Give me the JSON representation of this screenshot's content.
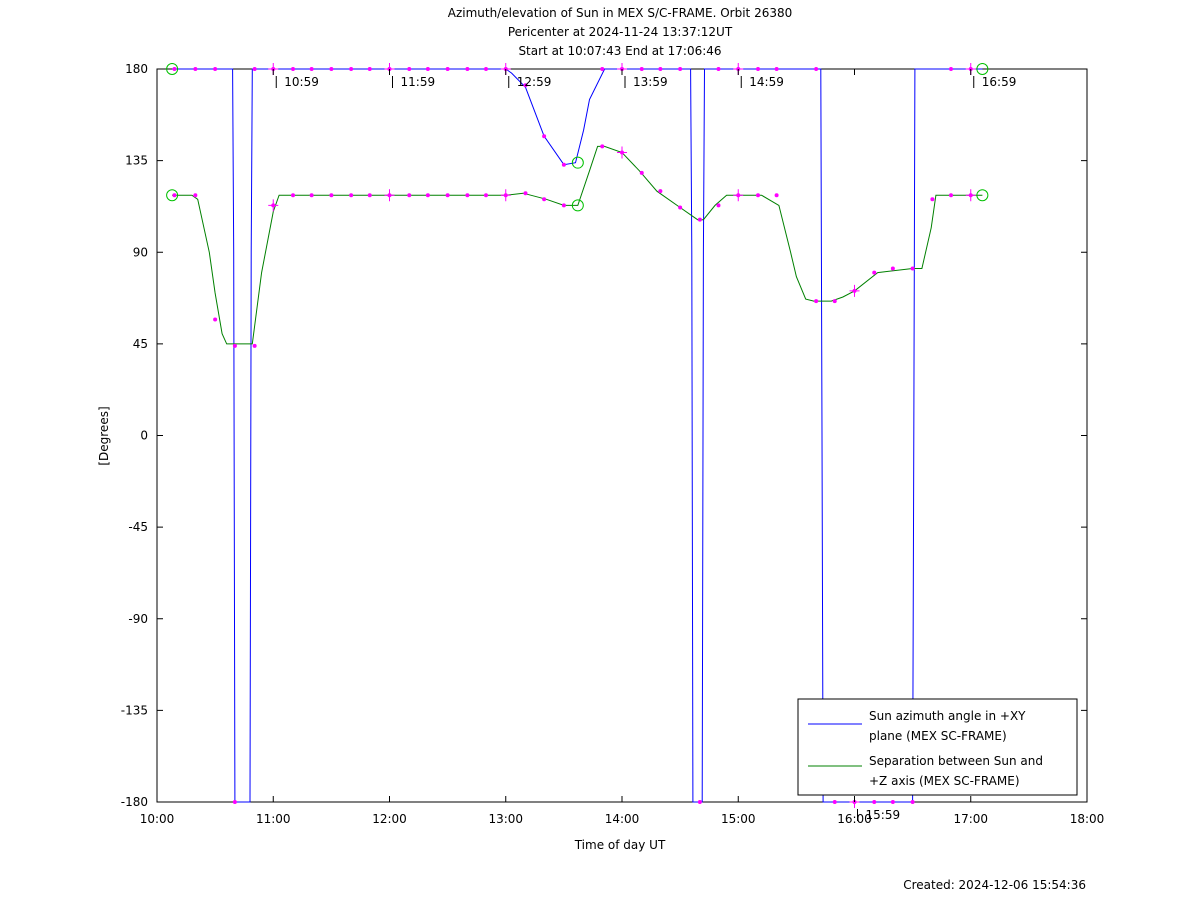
{
  "chart_data": {
    "type": "line",
    "title": "Azimuth/elevation of Sun in MEX S/C-FRAME.  Orbit 26380",
    "subtitle_1": "Pericenter at 2024-11-24 13:37:12UT",
    "subtitle_2": "Start at 10:07:43 End at 17:06:46",
    "xlabel": "Time of day UT",
    "ylabel": "[Degrees]",
    "footer": "Created: 2024-12-06 15:54:36",
    "xlim": [
      10.0,
      18.0
    ],
    "ylim": [
      -180,
      180
    ],
    "x_ticks": [
      {
        "v": 10,
        "label": "10:00"
      },
      {
        "v": 11,
        "label": "11:00"
      },
      {
        "v": 12,
        "label": "12:00"
      },
      {
        "v": 13,
        "label": "13:00"
      },
      {
        "v": 14,
        "label": "14:00"
      },
      {
        "v": 15,
        "label": "15:00"
      },
      {
        "v": 16,
        "label": "16:00"
      },
      {
        "v": 17,
        "label": "17:00"
      },
      {
        "v": 18,
        "label": "18:00"
      }
    ],
    "y_ticks": [
      {
        "v": 180,
        "label": "180"
      },
      {
        "v": 135,
        "label": "135"
      },
      {
        "v": 90,
        "label": "90"
      },
      {
        "v": 45,
        "label": "45"
      },
      {
        "v": 0,
        "label": "0"
      },
      {
        "v": -45,
        "label": "-45"
      },
      {
        "v": -90,
        "label": "-90"
      },
      {
        "v": -135,
        "label": "-135"
      },
      {
        "v": -180,
        "label": "-180"
      }
    ],
    "legend_position": "bottom-right",
    "series": [
      {
        "name_line1": "Sun azimuth angle in +XY",
        "name_line2": "plane (MEX SC-FRAME)",
        "color": "#0000ff",
        "x": [
          10.13,
          10.55,
          10.65,
          10.66,
          10.67,
          10.8,
          10.81,
          10.82,
          10.9,
          11.5,
          12.5,
          13.0,
          13.05,
          13.17,
          13.33,
          13.5,
          13.6,
          13.67,
          13.72,
          13.85,
          14.5,
          14.59,
          14.6,
          14.61,
          14.69,
          14.7,
          14.71,
          15.0,
          15.5,
          15.71,
          15.72,
          15.73,
          15.75,
          16.5,
          16.51,
          16.52,
          16.53,
          17.1
        ],
        "y": [
          180,
          180,
          180,
          90,
          -180,
          -180,
          90,
          180,
          180,
          180,
          180,
          180,
          178,
          171,
          147,
          133,
          134,
          150,
          165,
          180,
          180,
          180,
          90,
          -180,
          -180,
          90,
          180,
          180,
          180,
          180,
          0,
          -180,
          -180,
          -180,
          0,
          180,
          180,
          180
        ]
      },
      {
        "name_line1": "Separation between Sun and",
        "name_line2": "+Z axis (MEX SC-FRAME)",
        "color": "#008000",
        "x": [
          10.13,
          10.3,
          10.35,
          10.45,
          10.5,
          10.56,
          10.6,
          10.65,
          10.82,
          10.9,
          11.0,
          11.05,
          11.5,
          12.0,
          12.5,
          13.0,
          13.15,
          13.35,
          13.5,
          13.62,
          13.72,
          13.79,
          13.85,
          14.0,
          14.15,
          14.3,
          14.5,
          14.65,
          14.7,
          14.8,
          14.9,
          15.0,
          15.2,
          15.35,
          15.45,
          15.5,
          15.58,
          15.65,
          15.8,
          15.9,
          16.0,
          16.2,
          16.5,
          16.58,
          16.66,
          16.7,
          17.1
        ],
        "y": [
          118,
          118,
          116,
          90,
          70,
          50,
          45,
          45,
          45,
          80,
          110,
          118,
          118,
          118,
          118,
          118,
          119,
          116,
          113,
          113,
          130,
          142,
          142,
          139,
          130,
          120,
          112,
          106,
          106,
          113,
          118,
          118,
          118,
          113,
          90,
          78,
          67,
          66,
          66,
          68,
          71,
          80,
          82,
          82,
          102,
          118,
          118
        ]
      }
    ],
    "sample_markers": {
      "color": "#ff00ff",
      "points": [
        [
          10.15,
          118
        ],
        [
          10.33,
          118
        ],
        [
          10.5,
          57
        ],
        [
          10.67,
          44
        ],
        [
          10.84,
          44
        ],
        [
          11.0,
          113
        ],
        [
          11.17,
          118
        ],
        [
          11.33,
          118
        ],
        [
          11.5,
          118
        ],
        [
          11.67,
          118
        ],
        [
          11.83,
          118
        ],
        [
          12.0,
          118
        ],
        [
          12.17,
          118
        ],
        [
          12.33,
          118
        ],
        [
          12.5,
          118
        ],
        [
          12.67,
          118
        ],
        [
          12.83,
          118
        ],
        [
          13.0,
          118
        ],
        [
          13.17,
          119
        ],
        [
          13.33,
          116
        ],
        [
          13.5,
          113
        ],
        [
          13.83,
          142
        ],
        [
          14.0,
          139
        ],
        [
          14.17,
          129
        ],
        [
          14.33,
          120
        ],
        [
          14.5,
          112
        ],
        [
          14.67,
          106
        ],
        [
          14.83,
          113
        ],
        [
          15.0,
          118
        ],
        [
          15.17,
          118
        ],
        [
          15.33,
          118
        ],
        [
          15.67,
          66
        ],
        [
          15.83,
          66
        ],
        [
          16.0,
          71
        ],
        [
          16.17,
          80
        ],
        [
          16.33,
          82
        ],
        [
          16.5,
          82
        ],
        [
          16.67,
          116
        ],
        [
          16.83,
          118
        ],
        [
          17.0,
          118
        ],
        [
          10.15,
          180
        ],
        [
          10.33,
          180
        ],
        [
          10.5,
          180
        ],
        [
          10.67,
          -180
        ],
        [
          10.84,
          180
        ],
        [
          11.0,
          180
        ],
        [
          11.17,
          180
        ],
        [
          11.33,
          180
        ],
        [
          11.5,
          180
        ],
        [
          11.67,
          180
        ],
        [
          11.83,
          180
        ],
        [
          12.0,
          180
        ],
        [
          12.17,
          180
        ],
        [
          12.33,
          180
        ],
        [
          12.5,
          180
        ],
        [
          12.67,
          180
        ],
        [
          12.83,
          180
        ],
        [
          13.0,
          180
        ],
        [
          13.17,
          172
        ],
        [
          13.33,
          147
        ],
        [
          13.5,
          133
        ],
        [
          13.83,
          180
        ],
        [
          14.0,
          180
        ],
        [
          14.17,
          180
        ],
        [
          14.33,
          180
        ],
        [
          14.5,
          180
        ],
        [
          14.67,
          -180
        ],
        [
          14.83,
          180
        ],
        [
          15.0,
          180
        ],
        [
          15.17,
          180
        ],
        [
          15.33,
          180
        ],
        [
          15.67,
          180
        ],
        [
          15.83,
          -180
        ],
        [
          16.0,
          -180
        ],
        [
          16.17,
          -180
        ],
        [
          16.33,
          -180
        ],
        [
          16.5,
          -180
        ],
        [
          16.83,
          180
        ],
        [
          17.0,
          180
        ]
      ],
      "hour_crosses": [
        [
          11.0,
          113
        ],
        [
          14.0,
          139
        ],
        [
          16.0,
          71
        ],
        [
          11.0,
          180
        ],
        [
          12.0,
          180
        ],
        [
          13.0,
          180
        ],
        [
          14.0,
          180
        ],
        [
          15.0,
          180
        ],
        [
          17.0,
          180
        ],
        [
          16.0,
          -180
        ],
        [
          12.0,
          118
        ],
        [
          13.0,
          118
        ],
        [
          15.0,
          118
        ],
        [
          17.0,
          118
        ]
      ],
      "start_end_circles": [
        [
          10.13,
          180
        ],
        [
          10.13,
          118
        ],
        [
          17.1,
          180
        ],
        [
          17.1,
          118
        ],
        [
          13.62,
          134
        ],
        [
          13.62,
          113
        ]
      ]
    },
    "time_annotations": [
      {
        "x": 11.0,
        "y": 180,
        "label": "10:59"
      },
      {
        "x": 12.0,
        "y": 180,
        "label": "11:59"
      },
      {
        "x": 13.0,
        "y": 180,
        "label": "12:59"
      },
      {
        "x": 14.0,
        "y": 180,
        "label": "13:59"
      },
      {
        "x": 15.0,
        "y": 180,
        "label": "14:59"
      },
      {
        "x": 16.0,
        "y": -180,
        "label": "15:59"
      },
      {
        "x": 17.0,
        "y": 180,
        "label": "16:59"
      }
    ]
  }
}
